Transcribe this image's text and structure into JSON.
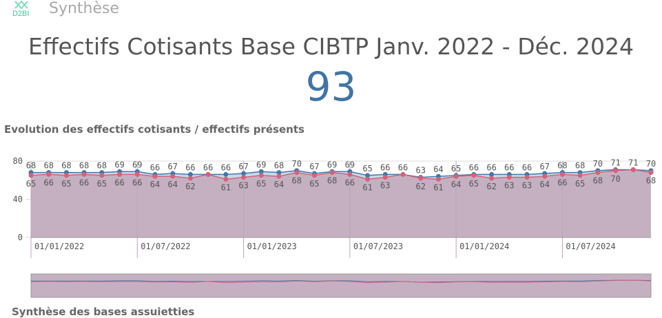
{
  "header": {
    "logo_text": "D2BI",
    "sheet_title": "Synthèse"
  },
  "kpi": {
    "title": "Effectifs Cotisants Base CIBTP Janv. 2022 - Déc. 2024",
    "value": "93"
  },
  "section_title": "Evolution des effectifs cotisants / effectifs présents",
  "next_section_title": "Synthèse des bases assuietties",
  "chart_data": {
    "type": "area",
    "title": "Evolution des effectifs cotisants / effectifs présents",
    "ylim": [
      0,
      80
    ],
    "yticks": [
      "0",
      "40",
      "80"
    ],
    "xticks": [
      "01/01/2022",
      "01/07/2022",
      "01/01/2023",
      "01/07/2023",
      "01/01/2024",
      "01/07/2024"
    ],
    "xtick_index": [
      0,
      6,
      12,
      18,
      24,
      30
    ],
    "x": [
      "2022-01",
      "2022-02",
      "2022-03",
      "2022-04",
      "2022-05",
      "2022-06",
      "2022-07",
      "2022-08",
      "2022-09",
      "2022-10",
      "2022-11",
      "2022-12",
      "2023-01",
      "2023-02",
      "2023-03",
      "2023-04",
      "2023-05",
      "2023-06",
      "2023-07",
      "2023-08",
      "2023-09",
      "2023-10",
      "2023-11",
      "2023-12",
      "2024-01",
      "2024-02",
      "2024-03",
      "2024-04",
      "2024-05",
      "2024-06",
      "2024-07",
      "2024-08",
      "2024-09",
      "2024-10",
      "2024-11",
      "2024-12"
    ],
    "series": [
      {
        "name": "effectifs cotisants",
        "color": "#4477aa",
        "values": [
          68,
          68,
          68,
          68,
          68,
          69,
          69,
          66,
          67,
          66,
          66,
          66,
          67,
          69,
          68,
          70,
          67,
          69,
          69,
          65,
          66,
          66,
          63,
          64,
          65,
          66,
          66,
          66,
          66,
          67,
          68,
          68,
          70,
          71,
          71,
          70
        ]
      },
      {
        "name": "effectifs présents",
        "color": "#d4627a",
        "values": [
          65,
          66,
          65,
          66,
          65,
          66,
          66,
          64,
          64,
          62,
          66,
          61,
          63,
          65,
          64,
          68,
          65,
          68,
          66,
          61,
          63,
          66,
          62,
          61,
          64,
          65,
          62,
          63,
          63,
          64,
          66,
          65,
          68,
          70,
          71,
          68
        ]
      }
    ]
  }
}
